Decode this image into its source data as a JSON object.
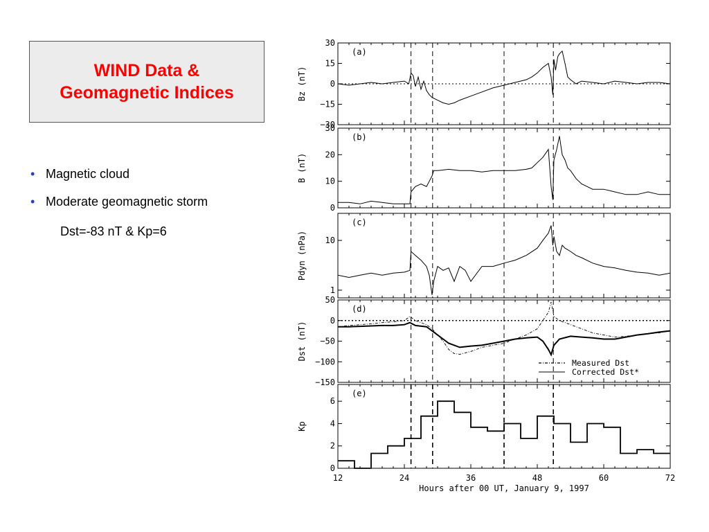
{
  "slide": {
    "title_line1": "WIND Data &",
    "title_line2": "Geomagnetic Indices",
    "bullets": [
      "Magnetic cloud",
      "Moderate geomagnetic storm"
    ],
    "subline": "Dst=-83 nT & Kp=6",
    "colors": {
      "title": "#ff0000",
      "bullet": "#1f3fd0"
    }
  },
  "chart_data": {
    "type": "line",
    "xlabel": "Hours after 00 UT, January 9, 1997",
    "xlim": [
      12,
      72
    ],
    "xticks": [
      12,
      24,
      36,
      48,
      60,
      72
    ],
    "markers_hours": [
      25.2,
      29.1,
      42.0,
      50.9
    ],
    "panels": [
      {
        "id": "a",
        "panel_label": "(a)",
        "ylabel": "Bz (nT)",
        "ylim": [
          -30,
          30
        ],
        "ytick_labels": [
          "30",
          "15",
          "0",
          "−15",
          "−30"
        ],
        "ytick_values": [
          30,
          15,
          0,
          -15,
          -30
        ],
        "zero_line": true,
        "series": [
          {
            "x": [
              12,
              14,
              16,
              18,
              20,
              22,
              24,
              24.8,
              25.2,
              25.6,
              26,
              26.5,
              27,
              27.5,
              28,
              28.5,
              29,
              30,
              31,
              32,
              33,
              34,
              36,
              38,
              40,
              42,
              44,
              46,
              47,
              48,
              49,
              50,
              50.5,
              50.8,
              51,
              51.3,
              51.7,
              52,
              52.5,
              53,
              53.5,
              54,
              55,
              56,
              58,
              60,
              62,
              64,
              66,
              68,
              70,
              72
            ],
            "y": [
              0,
              -1,
              0,
              1,
              0,
              1,
              2,
              0,
              8,
              6,
              -2,
              5,
              -4,
              2,
              -5,
              -8,
              -10,
              -12,
              -14,
              -15,
              -14,
              -12,
              -9,
              -6,
              -3,
              -1,
              1,
              3,
              5,
              8,
              12,
              15,
              5,
              -8,
              18,
              10,
              20,
              22,
              24,
              15,
              5,
              3,
              0,
              2,
              1,
              0,
              2,
              1,
              0,
              1,
              1,
              0
            ]
          }
        ]
      },
      {
        "id": "b",
        "panel_label": "(b)",
        "ylabel": "B (nT)",
        "ylim": [
          0,
          30
        ],
        "ytick_labels": [
          "30",
          "20",
          "10",
          "0"
        ],
        "ytick_values": [
          30,
          20,
          10,
          0
        ],
        "series": [
          {
            "x": [
              12,
              14,
              16,
              18,
              20,
              22,
              24,
              25,
              25.2,
              26,
              27,
              28,
              28.5,
              29,
              29.3,
              30,
              32,
              34,
              36,
              38,
              40,
              42,
              44,
              46,
              47,
              48,
              49,
              50,
              50.5,
              50.8,
              51,
              51.5,
              52,
              52.5,
              53,
              53.5,
              54,
              55,
              56,
              57,
              58,
              60,
              62,
              64,
              66,
              68,
              70,
              72
            ],
            "y": [
              2,
              2,
              1.5,
              2.5,
              2,
              1.5,
              1.5,
              1.5,
              6,
              8,
              9,
              8,
              10,
              12,
              14,
              14,
              14.5,
              14,
              14,
              13.5,
              14,
              14,
              14,
              14.5,
              15,
              17,
              19,
              22,
              8,
              3,
              18,
              22,
              27,
              20,
              18,
              15,
              14,
              11,
              9,
              8,
              7,
              7,
              6,
              5,
              5,
              6,
              5,
              5
            ]
          }
        ]
      },
      {
        "id": "c",
        "panel_label": "(c)",
        "ylabel": "Pdyn (nPa)",
        "scale": "log",
        "ylim": [
          0.7,
          35
        ],
        "ytick_labels": [
          "10",
          "1"
        ],
        "ytick_values": [
          10,
          1
        ],
        "series": [
          {
            "x": [
              12,
              14,
              16,
              18,
              20,
              22,
              24,
              25,
              25.2,
              26,
              27,
              28,
              28.5,
              29,
              29.3,
              30,
              31,
              32,
              33,
              34,
              35,
              36,
              38,
              40,
              42,
              44,
              46,
              48,
              49,
              50,
              50.5,
              50.8,
              51,
              51.5,
              52,
              52.5,
              53,
              54,
              55,
              56,
              58,
              60,
              62,
              64,
              66,
              68,
              70,
              72
            ],
            "y": [
              2,
              1.8,
              2,
              2.2,
              2,
              2.2,
              2.3,
              2.5,
              6,
              5,
              4,
              3,
              2,
              0.8,
              1.5,
              3,
              2.5,
              2.8,
              1.5,
              3,
              2.5,
              1.5,
              3,
              3,
              3.5,
              4,
              5,
              7,
              10,
              14,
              20,
              8,
              12,
              6,
              5,
              8,
              7,
              6,
              5,
              4.5,
              3.5,
              3,
              2.8,
              2.5,
              2.3,
              2.2,
              2,
              2.2
            ]
          }
        ]
      },
      {
        "id": "d",
        "panel_label": "(d)",
        "ylabel": "Dst (nT)",
        "ylim": [
          -150,
          50
        ],
        "ytick_labels": [
          "50",
          "0",
          "−50",
          "−100",
          "−150"
        ],
        "ytick_values": [
          50,
          0,
          -50,
          -100,
          -150
        ],
        "zero_line": true,
        "legend": {
          "position": "bottom-right",
          "entries": [
            "Measured Dst",
            "Corrected Dst*"
          ]
        },
        "series": [
          {
            "name": "Measured Dst",
            "style": "dash-dot",
            "x": [
              12,
              14,
              16,
              18,
              20,
              22,
              24,
              25,
              26,
              28,
              29,
              30,
              31,
              32,
              33,
              34,
              36,
              38,
              40,
              42,
              44,
              46,
              48,
              49,
              50,
              50.5,
              51,
              52,
              53,
              54,
              56,
              58,
              60,
              62,
              64,
              66,
              68,
              70,
              72
            ],
            "y": [
              -15,
              -12,
              -10,
              -8,
              -5,
              -3,
              0,
              10,
              0,
              -10,
              -20,
              -35,
              -50,
              -70,
              -80,
              -82,
              -75,
              -65,
              -60,
              -55,
              -45,
              -35,
              -20,
              0,
              20,
              45,
              10,
              0,
              -5,
              -10,
              -20,
              -30,
              -35,
              -40,
              -38,
              -35,
              -32,
              -30,
              -25
            ]
          },
          {
            "name": "Corrected Dst*",
            "style": "solid",
            "x": [
              12,
              14,
              16,
              18,
              20,
              22,
              24,
              25,
              26,
              28,
              29,
              30,
              31,
              32,
              34,
              36,
              38,
              40,
              42,
              44,
              46,
              48,
              49,
              50,
              50.5,
              51,
              52,
              54,
              56,
              58,
              60,
              62,
              64,
              66,
              68,
              70,
              72
            ],
            "y": [
              -15,
              -15,
              -14,
              -13,
              -12,
              -12,
              -10,
              -5,
              -12,
              -15,
              -25,
              -35,
              -45,
              -55,
              -65,
              -62,
              -60,
              -55,
              -50,
              -45,
              -42,
              -40,
              -50,
              -70,
              -83,
              -60,
              -45,
              -38,
              -40,
              -42,
              -45,
              -45,
              -40,
              -35,
              -32,
              -28,
              -25
            ]
          }
        ]
      },
      {
        "id": "e",
        "panel_label": "(e)",
        "ylabel": "Kp",
        "ylim": [
          0,
          7.5
        ],
        "style": "step",
        "ytick_labels": [
          "6",
          "4",
          "2",
          "0"
        ],
        "ytick_values": [
          6,
          4,
          2,
          0
        ],
        "series": [
          {
            "x": [
              12,
              15,
              18,
              21,
              24,
              27,
              30,
              33,
              36,
              39,
              42,
              45,
              48,
              51,
              54,
              57,
              60,
              63,
              66,
              69,
              72
            ],
            "y": [
              0.67,
              0,
              1.33,
              2,
              2.67,
              4.67,
              6,
              5,
              3.67,
              3.33,
              4,
              2.67,
              4.67,
              4,
              2.33,
              4,
              3.67,
              1.33,
              1.67,
              1.33,
              1.33
            ]
          }
        ]
      }
    ]
  }
}
